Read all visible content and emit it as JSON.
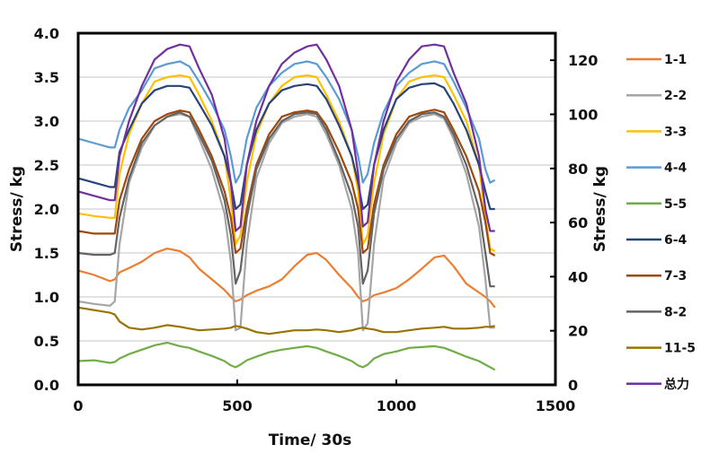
{
  "chart_data": {
    "type": "line",
    "title": "",
    "xlabel": "Time/ 30s",
    "ylabel": "Stress/ kg",
    "ylabel_right": "Stress/ kg",
    "xlim": [
      0,
      1500
    ],
    "ylim": [
      0,
      4.0
    ],
    "ylim_right": [
      0,
      130
    ],
    "x_ticks": [
      "0",
      "500",
      "1000",
      "1500"
    ],
    "y_ticks": [
      "0.0",
      "0.5",
      "1.0",
      "1.5",
      "2.0",
      "2.5",
      "3.0",
      "3.5",
      "4.0"
    ],
    "y_ticks_right": [
      "0",
      "20",
      "40",
      "60",
      "80",
      "100",
      "120"
    ],
    "grid": true,
    "legend_position": "right",
    "x": [
      0,
      50,
      100,
      115,
      130,
      160,
      200,
      240,
      280,
      320,
      350,
      380,
      420,
      460,
      480,
      495,
      510,
      530,
      560,
      600,
      640,
      680,
      720,
      750,
      780,
      820,
      860,
      880,
      895,
      910,
      930,
      960,
      1000,
      1040,
      1080,
      1120,
      1150,
      1180,
      1220,
      1260,
      1280,
      1295,
      1310
    ],
    "series": [
      {
        "name": "1-1",
        "color": "#ED7D31",
        "values": [
          1.3,
          1.25,
          1.18,
          1.2,
          1.28,
          1.33,
          1.4,
          1.5,
          1.55,
          1.52,
          1.45,
          1.32,
          1.2,
          1.08,
          1.0,
          0.95,
          0.97,
          1.02,
          1.07,
          1.12,
          1.2,
          1.35,
          1.48,
          1.5,
          1.42,
          1.25,
          1.1,
          1.0,
          0.95,
          0.97,
          1.02,
          1.05,
          1.1,
          1.2,
          1.32,
          1.45,
          1.47,
          1.35,
          1.15,
          1.05,
          1.0,
          0.95,
          0.88
        ]
      },
      {
        "name": "2-2",
        "color": "#A5A5A5",
        "values": [
          0.95,
          0.92,
          0.9,
          0.95,
          1.6,
          2.3,
          2.7,
          2.95,
          3.05,
          3.08,
          3.05,
          2.8,
          2.45,
          1.95,
          1.4,
          0.62,
          0.65,
          1.6,
          2.35,
          2.75,
          2.98,
          3.05,
          3.08,
          3.05,
          2.85,
          2.5,
          2.0,
          1.5,
          0.62,
          0.7,
          1.6,
          2.35,
          2.75,
          2.98,
          3.05,
          3.08,
          3.03,
          2.8,
          2.4,
          1.8,
          1.2,
          0.65,
          0.65
        ]
      },
      {
        "name": "3-3",
        "color": "#FFC000",
        "values": [
          1.95,
          1.92,
          1.9,
          1.9,
          2.4,
          2.85,
          3.2,
          3.45,
          3.5,
          3.52,
          3.5,
          3.3,
          3.0,
          2.6,
          2.1,
          1.6,
          1.7,
          2.3,
          2.85,
          3.2,
          3.4,
          3.5,
          3.52,
          3.5,
          3.3,
          3.0,
          2.6,
          2.2,
          1.6,
          1.7,
          2.3,
          2.85,
          3.25,
          3.45,
          3.5,
          3.52,
          3.5,
          3.3,
          3.0,
          2.5,
          1.9,
          1.55,
          1.52
        ]
      },
      {
        "name": "4-4",
        "color": "#5B9BD5",
        "values": [
          2.8,
          2.75,
          2.7,
          2.7,
          2.9,
          3.15,
          3.35,
          3.6,
          3.65,
          3.68,
          3.62,
          3.45,
          3.2,
          2.9,
          2.6,
          2.3,
          2.4,
          2.8,
          3.15,
          3.4,
          3.55,
          3.65,
          3.68,
          3.65,
          3.5,
          3.25,
          2.9,
          2.6,
          2.3,
          2.4,
          2.75,
          3.1,
          3.4,
          3.55,
          3.65,
          3.68,
          3.65,
          3.45,
          3.15,
          2.8,
          2.45,
          2.3,
          2.33
        ]
      },
      {
        "name": "5-5",
        "color": "#70AD47",
        "values": [
          0.27,
          0.28,
          0.25,
          0.26,
          0.3,
          0.35,
          0.4,
          0.45,
          0.48,
          0.44,
          0.42,
          0.38,
          0.33,
          0.27,
          0.22,
          0.2,
          0.23,
          0.28,
          0.32,
          0.37,
          0.4,
          0.42,
          0.44,
          0.42,
          0.38,
          0.33,
          0.27,
          0.22,
          0.2,
          0.23,
          0.3,
          0.35,
          0.38,
          0.42,
          0.43,
          0.44,
          0.42,
          0.38,
          0.32,
          0.27,
          0.23,
          0.2,
          0.17
        ]
      },
      {
        "name": "6-4",
        "color": "#264478",
        "values": [
          2.35,
          2.3,
          2.25,
          2.25,
          2.65,
          2.9,
          3.2,
          3.35,
          3.4,
          3.4,
          3.38,
          3.2,
          2.95,
          2.6,
          2.3,
          2.0,
          2.05,
          2.5,
          2.9,
          3.2,
          3.35,
          3.4,
          3.42,
          3.4,
          3.25,
          2.95,
          2.6,
          2.3,
          2.0,
          2.05,
          2.5,
          2.9,
          3.25,
          3.38,
          3.42,
          3.43,
          3.38,
          3.2,
          2.9,
          2.5,
          2.2,
          2.0,
          2.0
        ]
      },
      {
        "name": "7-3",
        "color": "#9E480E",
        "values": [
          1.75,
          1.72,
          1.72,
          1.72,
          2.1,
          2.45,
          2.8,
          3.0,
          3.08,
          3.12,
          3.1,
          2.9,
          2.6,
          2.2,
          1.9,
          1.5,
          1.55,
          2.0,
          2.5,
          2.85,
          3.05,
          3.1,
          3.12,
          3.1,
          2.95,
          2.65,
          2.3,
          2.0,
          1.5,
          1.55,
          2.05,
          2.5,
          2.85,
          3.05,
          3.1,
          3.13,
          3.1,
          2.9,
          2.6,
          2.2,
          1.85,
          1.5,
          1.47
        ]
      },
      {
        "name": "8-2",
        "color": "#636363",
        "values": [
          1.5,
          1.48,
          1.48,
          1.5,
          1.9,
          2.35,
          2.75,
          2.95,
          3.05,
          3.1,
          3.05,
          2.85,
          2.55,
          2.1,
          1.7,
          1.15,
          1.3,
          1.9,
          2.45,
          2.8,
          3.0,
          3.08,
          3.1,
          3.08,
          2.9,
          2.55,
          2.15,
          1.8,
          1.15,
          1.3,
          1.95,
          2.45,
          2.8,
          3.0,
          3.08,
          3.1,
          3.05,
          2.85,
          2.5,
          2.0,
          1.5,
          1.12,
          1.12
        ]
      },
      {
        "name": "11-5",
        "color": "#997300",
        "values": [
          0.88,
          0.85,
          0.82,
          0.8,
          0.72,
          0.65,
          0.63,
          0.65,
          0.68,
          0.66,
          0.64,
          0.62,
          0.63,
          0.64,
          0.65,
          0.67,
          0.66,
          0.64,
          0.6,
          0.58,
          0.6,
          0.62,
          0.62,
          0.63,
          0.62,
          0.6,
          0.62,
          0.64,
          0.65,
          0.64,
          0.63,
          0.6,
          0.6,
          0.62,
          0.64,
          0.65,
          0.66,
          0.64,
          0.64,
          0.65,
          0.66,
          0.66,
          0.67
        ]
      },
      {
        "name": "总力",
        "color": "#7030A0",
        "values": [
          2.2,
          2.15,
          2.1,
          2.1,
          2.6,
          3.0,
          3.4,
          3.7,
          3.82,
          3.87,
          3.85,
          3.6,
          3.3,
          2.8,
          2.3,
          1.75,
          1.8,
          2.5,
          3.0,
          3.4,
          3.65,
          3.78,
          3.85,
          3.87,
          3.7,
          3.4,
          2.9,
          2.4,
          1.8,
          1.85,
          2.5,
          3.0,
          3.45,
          3.7,
          3.85,
          3.87,
          3.85,
          3.55,
          3.2,
          2.6,
          2.0,
          1.75,
          1.75
        ]
      }
    ]
  }
}
